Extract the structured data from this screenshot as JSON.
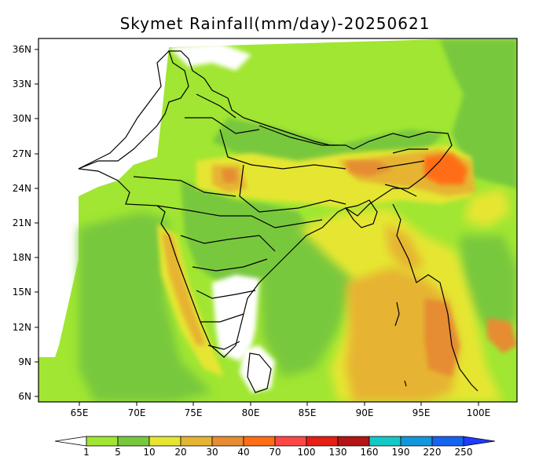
{
  "title": "Skymet Rainfall(mm/day)-20250621",
  "map": {
    "lat_labels": [
      "36N",
      "33N",
      "30N",
      "27N",
      "24N",
      "21N",
      "18N",
      "15N",
      "12N",
      "9N",
      "6N"
    ],
    "lon_labels": [
      "65E",
      "70E",
      "75E",
      "80E",
      "85E",
      "90E",
      "95E",
      "100E"
    ]
  },
  "legend": {
    "labels": [
      "1",
      "5",
      "10",
      "20",
      "30",
      "40",
      "70",
      "100",
      "130",
      "160",
      "190",
      "220",
      "250"
    ],
    "colors": [
      "#ffffff",
      "#a0e632",
      "#78c83c",
      "#e6e632",
      "#e6b432",
      "#e68c32",
      "#ff6e14",
      "#ff4646",
      "#e61e14",
      "#b41414",
      "#14c8c8",
      "#1496dc",
      "#1464f0",
      "#1e3cff"
    ]
  }
}
